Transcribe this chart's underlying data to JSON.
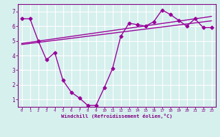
{
  "x": [
    0,
    1,
    2,
    3,
    4,
    5,
    6,
    7,
    8,
    9,
    10,
    11,
    12,
    13,
    14,
    15,
    16,
    17,
    18,
    19,
    20,
    21,
    22,
    23
  ],
  "y_main": [
    6.5,
    6.5,
    5.0,
    3.7,
    4.2,
    2.3,
    1.5,
    1.1,
    0.6,
    0.6,
    1.8,
    3.1,
    5.3,
    6.2,
    6.1,
    6.0,
    6.3,
    7.1,
    6.8,
    6.4,
    6.0,
    6.5,
    5.9,
    5.9
  ],
  "y_trend1": [
    4.82,
    4.9,
    4.98,
    5.06,
    5.14,
    5.22,
    5.3,
    5.38,
    5.46,
    5.54,
    5.62,
    5.7,
    5.78,
    5.86,
    5.94,
    6.02,
    6.1,
    6.18,
    6.26,
    6.34,
    6.42,
    6.5,
    6.58,
    6.66
  ],
  "y_trend2": [
    4.75,
    4.82,
    4.89,
    4.96,
    5.03,
    5.1,
    5.17,
    5.24,
    5.31,
    5.38,
    5.45,
    5.52,
    5.59,
    5.66,
    5.73,
    5.8,
    5.87,
    5.94,
    6.01,
    6.08,
    6.15,
    6.22,
    6.29,
    6.36
  ],
  "color_main": "#990099",
  "color_trend": "#990099",
  "bg_color": "#d6f0ee",
  "grid_color": "#ffffff",
  "xlabel": "Windchill (Refroidissement éolien,°C)",
  "xlim": [
    -0.5,
    23.5
  ],
  "ylim": [
    0.5,
    7.5
  ],
  "yticks": [
    1,
    2,
    3,
    4,
    5,
    6,
    7
  ],
  "xticks": [
    0,
    1,
    2,
    3,
    4,
    5,
    6,
    7,
    8,
    9,
    10,
    11,
    12,
    13,
    14,
    15,
    16,
    17,
    18,
    19,
    20,
    21,
    22,
    23
  ],
  "marker": "D",
  "markersize": 2.5,
  "linewidth": 1.0
}
